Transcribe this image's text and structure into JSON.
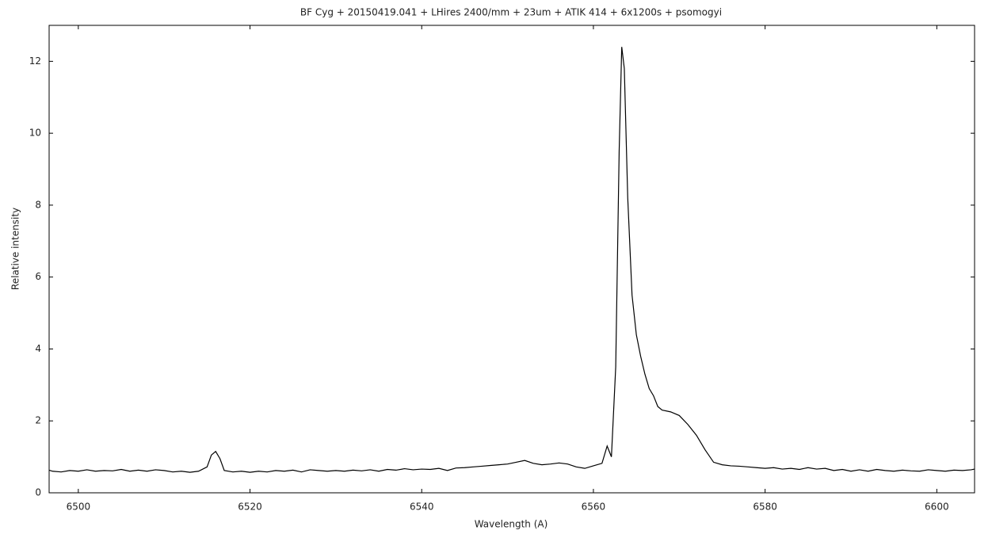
{
  "chart_data": {
    "type": "line",
    "title": "BF Cyg + 20150419.041 + LHires 2400/mm + 23um + ATIK 414 + 6x1200s + psomogyi",
    "xlabel": "Wavelength (A)",
    "ylabel": "Relative intensity",
    "x": [
      6496.6,
      6497,
      6498,
      6499,
      6500,
      6501,
      6502,
      6503,
      6504,
      6505,
      6506,
      6507,
      6508,
      6509,
      6510,
      6511,
      6512,
      6513,
      6514,
      6515,
      6515.5,
      6516,
      6516.5,
      6517,
      6518,
      6519,
      6520,
      6521,
      6522,
      6523,
      6524,
      6525,
      6526,
      6527,
      6528,
      6529,
      6530,
      6531,
      6532,
      6533,
      6534,
      6535,
      6536,
      6537,
      6538,
      6539,
      6540,
      6541,
      6542,
      6543,
      6544,
      6545,
      6546,
      6547,
      6548,
      6549,
      6550,
      6551,
      6552,
      6553,
      6554,
      6555,
      6556,
      6557,
      6558,
      6559,
      6560,
      6561,
      6561.6,
      6562.1,
      6562.6,
      6563,
      6563.3,
      6563.6,
      6564,
      6564.5,
      6565,
      6565.5,
      6566,
      6566.5,
      6567,
      6567.5,
      6568,
      6569,
      6570,
      6571,
      6572,
      6573,
      6574,
      6575,
      6576,
      6577,
      6578,
      6579,
      6580,
      6581,
      6582,
      6583,
      6584,
      6585,
      6586,
      6587,
      6588,
      6589,
      6590,
      6591,
      6592,
      6593,
      6594,
      6595,
      6596,
      6597,
      6598,
      6599,
      6600,
      6601,
      6602,
      6603,
      6604,
      6604.4
    ],
    "series": [
      {
        "color": "#000000",
        "values": [
          0.63,
          0.6,
          0.58,
          0.62,
          0.6,
          0.64,
          0.6,
          0.62,
          0.61,
          0.65,
          0.6,
          0.63,
          0.6,
          0.64,
          0.62,
          0.58,
          0.6,
          0.57,
          0.6,
          0.72,
          1.05,
          1.15,
          0.95,
          0.62,
          0.58,
          0.6,
          0.57,
          0.6,
          0.58,
          0.62,
          0.6,
          0.63,
          0.58,
          0.64,
          0.62,
          0.6,
          0.62,
          0.6,
          0.63,
          0.61,
          0.64,
          0.6,
          0.65,
          0.63,
          0.67,
          0.64,
          0.66,
          0.65,
          0.68,
          0.62,
          0.69,
          0.7,
          0.72,
          0.74,
          0.76,
          0.78,
          0.8,
          0.85,
          0.9,
          0.82,
          0.78,
          0.8,
          0.83,
          0.8,
          0.72,
          0.68,
          0.75,
          0.82,
          1.3,
          1.0,
          3.5,
          9.5,
          12.4,
          11.8,
          8.2,
          5.5,
          4.4,
          3.8,
          3.3,
          2.9,
          2.7,
          2.4,
          2.3,
          2.25,
          2.15,
          1.9,
          1.6,
          1.2,
          0.85,
          0.78,
          0.75,
          0.74,
          0.72,
          0.7,
          0.68,
          0.7,
          0.66,
          0.68,
          0.65,
          0.7,
          0.66,
          0.68,
          0.62,
          0.65,
          0.6,
          0.64,
          0.6,
          0.65,
          0.62,
          0.6,
          0.63,
          0.61,
          0.6,
          0.64,
          0.62,
          0.6,
          0.63,
          0.62,
          0.64,
          0.66
        ]
      }
    ],
    "xlim": [
      6496.6,
      6604.4
    ],
    "ylim": [
      0,
      13
    ],
    "xticks": [
      6500,
      6520,
      6540,
      6560,
      6580,
      6600
    ],
    "yticks": [
      0,
      2,
      4,
      6,
      8,
      10,
      12
    ]
  }
}
